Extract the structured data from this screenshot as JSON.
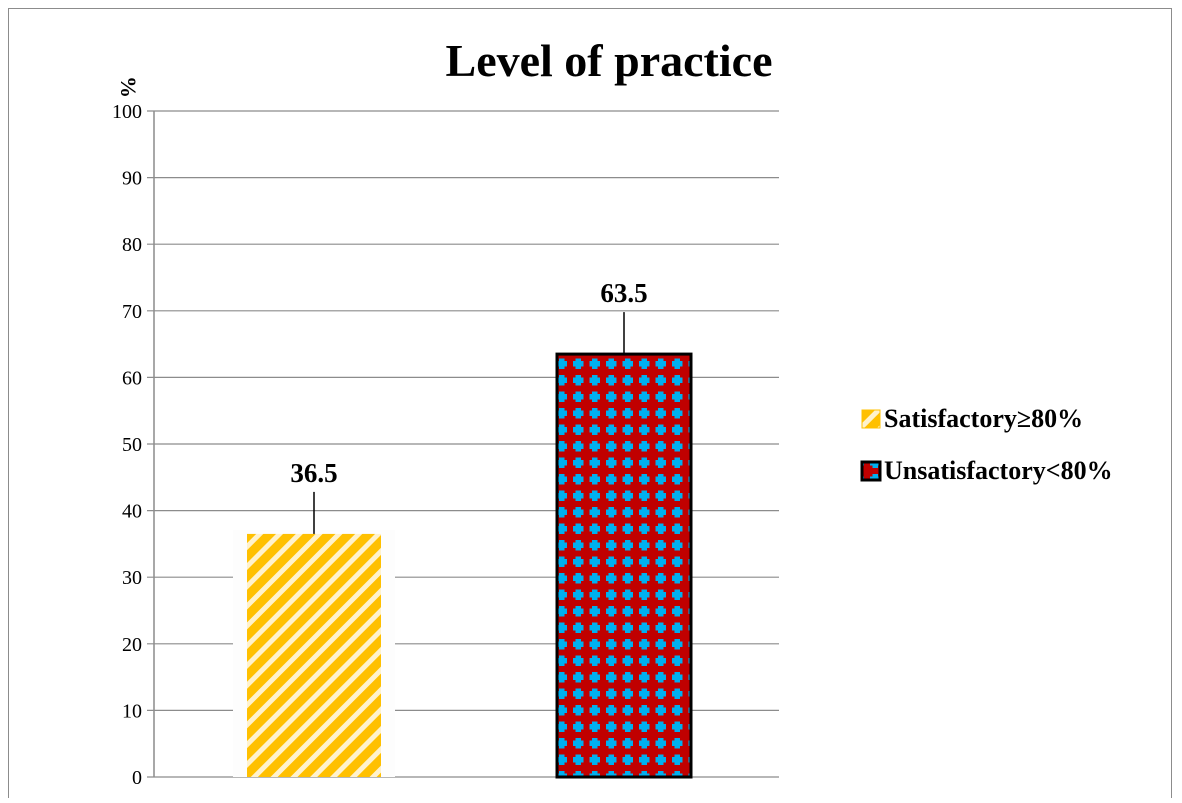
{
  "chart_data": {
    "type": "bar",
    "title": "Level of practice",
    "ylabel": "%",
    "xlabel": "",
    "ylim": [
      0,
      100
    ],
    "yticks": [
      0,
      10,
      20,
      30,
      40,
      50,
      60,
      70,
      80,
      90,
      100
    ],
    "grid": true,
    "legend_position": "right",
    "series": [
      {
        "name": "Satisfactory≥80%",
        "values": [
          36.5
        ],
        "color": "#FFC000",
        "pattern": "diagonal-stripes"
      },
      {
        "name": "Unsatisfactory<80%",
        "values": [
          63.5
        ],
        "color": "#C00000",
        "pattern": "blue-cross-grid",
        "accent": "#00B0F0"
      }
    ],
    "data_labels": [
      "36.5",
      "63.5"
    ]
  }
}
